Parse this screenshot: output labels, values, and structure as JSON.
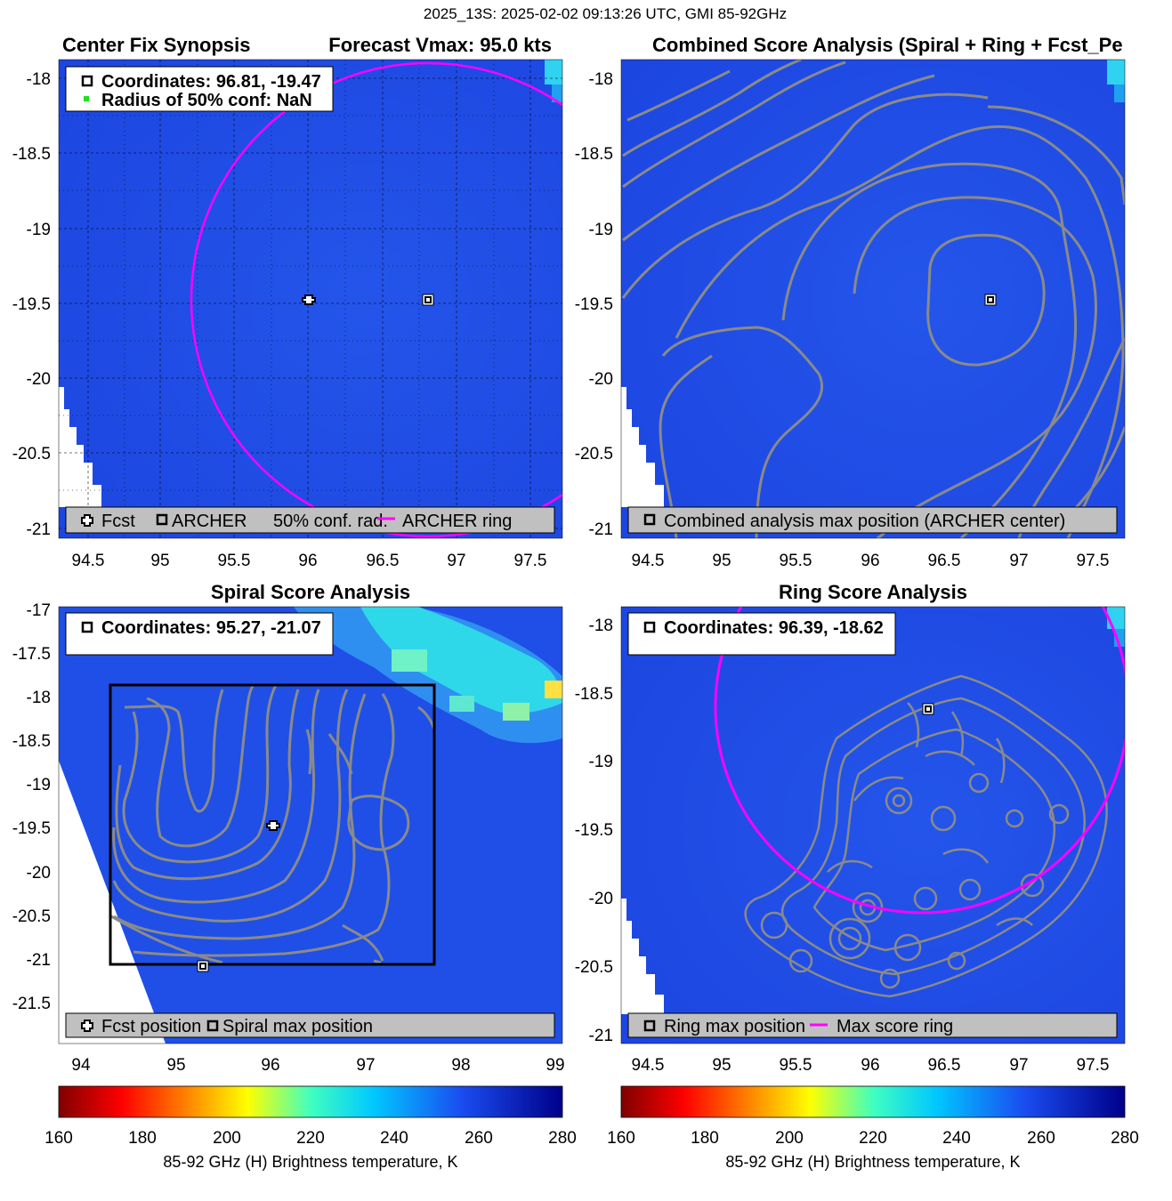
{
  "figure": {
    "suptitle": "2025_13S: 2025-02-02 09:13:26 UTC, GMI 85-92GHz"
  },
  "colors": {
    "background_blue": "#1f4fe6",
    "contour_gray": "#8a8a8a",
    "ring_magenta": "#ff00ff",
    "grid_black": "#000000",
    "legend_gray": "#c0c0c0"
  },
  "panels": [
    {
      "id": "p1",
      "title_left": "Center Fix Synopsis",
      "title_right": "Forecast Vmax: 95.0 kts",
      "xticks": [
        "94.5",
        "95",
        "95.5",
        "96",
        "96.5",
        "97",
        "97.5"
      ],
      "yticks": [
        "-18",
        "-18.5",
        "-19",
        "-19.5",
        "-20",
        "-20.5",
        "-21"
      ],
      "info_lines": [
        "Coordinates: 96.81, -19.47",
        "Radius of 50% conf: NaN"
      ],
      "legend": [
        {
          "icon": "cross-marker-icon",
          "label": "Fcst"
        },
        {
          "icon": "square-marker-icon",
          "label": "ARCHER"
        },
        {
          "icon": "none",
          "label": "50% conf. rad."
        },
        {
          "icon": "magenta-line-icon",
          "label": "ARCHER ring"
        }
      ]
    },
    {
      "id": "p2",
      "title": "Combined Score Analysis (Spiral + Ring + Fcst_Pe",
      "xticks": [
        "94.5",
        "95",
        "95.5",
        "96",
        "96.5",
        "97",
        "97.5"
      ],
      "yticks": [
        "-18",
        "-18.5",
        "-19",
        "-19.5",
        "-20",
        "-20.5",
        "-21"
      ],
      "legend": [
        {
          "icon": "square-marker-icon",
          "label": "Combined analysis max position (ARCHER center)"
        }
      ]
    },
    {
      "id": "p3",
      "title": "Spiral Score Analysis",
      "xticks": [
        "94",
        "95",
        "96",
        "97",
        "98",
        "99"
      ],
      "yticks": [
        "-17",
        "-17.5",
        "-18",
        "-18.5",
        "-19",
        "-19.5",
        "-20",
        "-20.5",
        "-21",
        "-21.5"
      ],
      "info_lines": [
        "Coordinates: 95.27, -21.07"
      ],
      "legend": [
        {
          "icon": "cross-marker-icon",
          "label": "Fcst position"
        },
        {
          "icon": "square-marker-icon",
          "label": "Spiral max position"
        }
      ]
    },
    {
      "id": "p4",
      "title": "Ring Score Analysis",
      "xticks": [
        "94.5",
        "95",
        "95.5",
        "96",
        "96.5",
        "97",
        "97.5"
      ],
      "yticks": [
        "-18",
        "-18.5",
        "-19",
        "-19.5",
        "-20",
        "-20.5",
        "-21"
      ],
      "info_lines": [
        "Coordinates: 96.39, -18.62"
      ],
      "legend": [
        {
          "icon": "square-marker-icon",
          "label": "Ring max position"
        },
        {
          "icon": "magenta-line-icon",
          "label": "Max score ring"
        }
      ]
    }
  ],
  "colorbars": [
    {
      "ticks": [
        "160",
        "180",
        "200",
        "220",
        "240",
        "260",
        "280"
      ],
      "label": "85-92 GHz (H) Brightness temperature, K"
    },
    {
      "ticks": [
        "160",
        "180",
        "200",
        "220",
        "240",
        "260",
        "280"
      ],
      "label": "85-92 GHz (H) Brightness temperature, K"
    }
  ],
  "chart_data": [
    {
      "type": "heatmap",
      "title": "Center Fix Synopsis",
      "subtitle": "Forecast Vmax: 95.0 kts",
      "xlim": [
        94.3,
        97.7
      ],
      "ylim": [
        -21.05,
        -17.85
      ],
      "colorbar_range": [
        160,
        280
      ],
      "points": [
        {
          "name": "Fcst",
          "x": 96.01,
          "y": -19.47,
          "marker": "cross"
        },
        {
          "name": "ARCHER",
          "x": 96.81,
          "y": -19.47,
          "marker": "square"
        }
      ],
      "ring": {
        "name": "ARCHER ring",
        "center": [
          96.81,
          -19.47
        ],
        "radius_deg": 1.6
      },
      "grid": true
    },
    {
      "type": "heatmap",
      "title": "Combined Score Analysis (Spiral + Ring + Fcst_Pe",
      "xlim": [
        94.3,
        97.7
      ],
      "ylim": [
        -21.05,
        -17.85
      ],
      "colorbar_range": [
        160,
        280
      ],
      "points": [
        {
          "name": "Combined analysis max position (ARCHER center)",
          "x": 96.81,
          "y": -19.47,
          "marker": "square"
        }
      ],
      "contours": "score contours centered near (96.81, -19.47)"
    },
    {
      "type": "heatmap",
      "title": "Spiral Score Analysis",
      "xlim": [
        93.8,
        99.0
      ],
      "ylim": [
        -21.95,
        -16.95
      ],
      "colorbar_range": [
        160,
        280
      ],
      "points": [
        {
          "name": "Fcst position",
          "x": 96.01,
          "y": -19.47,
          "marker": "cross"
        },
        {
          "name": "Spiral max position",
          "x": 95.27,
          "y": -21.07,
          "marker": "square"
        }
      ],
      "search_box": {
        "x": [
          94.3,
          97.7
        ],
        "y": [
          -21.05,
          -17.85
        ]
      }
    },
    {
      "type": "heatmap",
      "title": "Ring Score Analysis",
      "xlim": [
        94.3,
        97.7
      ],
      "ylim": [
        -21.05,
        -17.85
      ],
      "colorbar_range": [
        160,
        280
      ],
      "points": [
        {
          "name": "Ring max position",
          "x": 96.39,
          "y": -18.62,
          "marker": "square"
        }
      ],
      "ring": {
        "name": "Max score ring",
        "center": [
          96.39,
          -18.62
        ],
        "radius_deg": 1.3
      }
    }
  ]
}
